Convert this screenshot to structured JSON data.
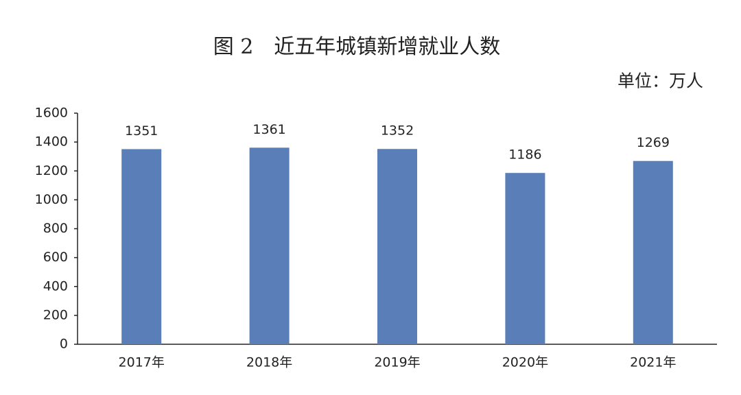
{
  "chart_data": {
    "type": "bar",
    "title": "图 2　近五年城镇新增就业人数",
    "unit": "单位：万人",
    "categories": [
      "2017年",
      "2018年",
      "2019年",
      "2020年",
      "2021年"
    ],
    "values": [
      1351,
      1361,
      1352,
      1186,
      1269
    ],
    "color": "#5a7fb8",
    "ylim": [
      0,
      1600
    ],
    "yticks": [
      0,
      200,
      400,
      600,
      800,
      1000,
      1200,
      1400,
      1600
    ],
    "grid": false
  }
}
